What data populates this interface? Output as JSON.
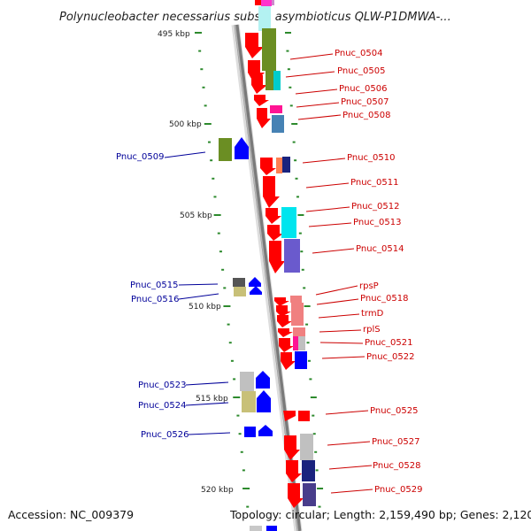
{
  "title": "Polynucleobacter necessarius subsp. asymbioticus QLW-P1DMWA-...",
  "footer": {
    "accession": "Accession: NC_009379",
    "topology": "Topology: circular; Length: 2,159,490 bp; Genes: 2,120"
  },
  "colors": {
    "backbone": "#888888",
    "forward_label": "#cc0000",
    "reverse_label": "#000099",
    "tick": "#2d8a2d",
    "forward_strand": "#ff0000",
    "reverse_strand": "#0000ff"
  },
  "ticks": [
    {
      "label": "495 kbp"
    },
    {
      "label": "500 kbp"
    },
    {
      "label": "505 kbp"
    },
    {
      "label": "510 kbp"
    },
    {
      "label": "515 kbp"
    },
    {
      "label": "520 kbp"
    }
  ],
  "forward_genes": [
    {
      "label": "Pnuc_0504"
    },
    {
      "label": "Pnuc_0505"
    },
    {
      "label": "Pnuc_0506"
    },
    {
      "label": "Pnuc_0507"
    },
    {
      "label": "Pnuc_0508"
    },
    {
      "label": "Pnuc_0510"
    },
    {
      "label": "Pnuc_0511"
    },
    {
      "label": "Pnuc_0512"
    },
    {
      "label": "Pnuc_0513"
    },
    {
      "label": "Pnuc_0514"
    },
    {
      "label": "rpsP"
    },
    {
      "label": "Pnuc_0518"
    },
    {
      "label": "trmD"
    },
    {
      "label": "rplS"
    },
    {
      "label": "Pnuc_0521"
    },
    {
      "label": "Pnuc_0522"
    },
    {
      "label": "Pnuc_0525"
    },
    {
      "label": "Pnuc_0527"
    },
    {
      "label": "Pnuc_0528"
    },
    {
      "label": "Pnuc_0529"
    }
  ],
  "reverse_genes": [
    {
      "label": "Pnuc_0509"
    },
    {
      "label": "Pnuc_0515"
    },
    {
      "label": "Pnuc_0516"
    },
    {
      "label": "Pnuc_0523"
    },
    {
      "label": "Pnuc_0524"
    },
    {
      "label": "Pnuc_0526"
    }
  ]
}
